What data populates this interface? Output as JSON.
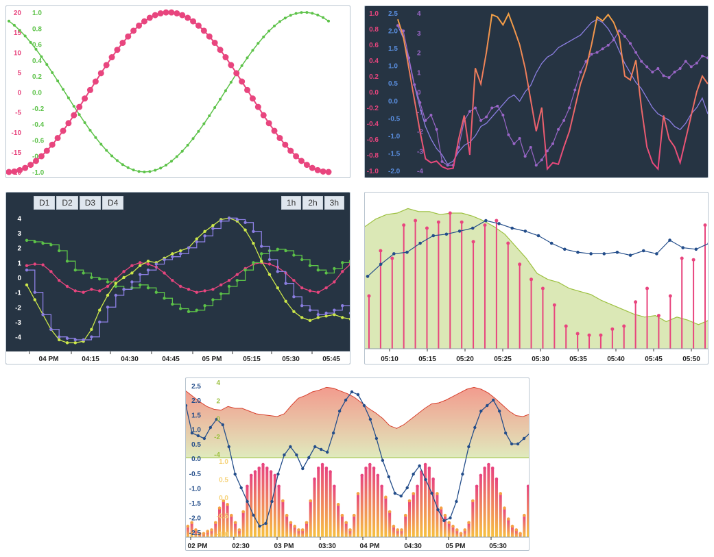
{
  "colors": {
    "pink": "#e8457e",
    "green": "#5cc248",
    "orange": "#f5a245",
    "blue": "#5a8fe0",
    "purple": "#9a66c8",
    "lavender": "#8c7fe3",
    "lime": "#cde84a",
    "olive": "#9cc03f",
    "navy": "#234d8a",
    "darkbg": "#263443"
  },
  "chart_data": [
    {
      "id": "chart1",
      "type": "line",
      "title": "",
      "y_axis_left": {
        "ticks": [
          "20",
          "15",
          "10",
          "5",
          "0",
          "-5",
          "-10",
          "-15",
          "-20"
        ],
        "ylim": [
          -20,
          20
        ]
      },
      "y_axis_right": {
        "ticks": [
          "1.0",
          "0.8",
          "0.6",
          "0.4",
          "0.2",
          "0.0",
          "-0.2",
          "-0.4",
          "-0.6",
          "-0.8",
          "-1.0"
        ],
        "ylim": [
          -1,
          1
        ]
      },
      "series": [
        {
          "axis": "left",
          "color": "pink",
          "shape": "sine",
          "period_x": [
            0,
            6.28
          ],
          "points": 60
        },
        {
          "axis": "right",
          "color": "green",
          "shape": "sine",
          "period_x": [
            0,
            6.28
          ],
          "points": 60
        }
      ]
    },
    {
      "id": "chart2",
      "type": "line",
      "y_axis_pink": {
        "ticks": [
          "1.0",
          "0.8",
          "0.6",
          "0.4",
          "0.2",
          "0.0",
          "-0.2",
          "-0.4",
          "-0.6",
          "-0.8",
          "-1.0"
        ],
        "ylim": [
          -1,
          1
        ]
      },
      "y_axis_blue": {
        "ticks": [
          "2.5",
          "2.0",
          "1.5",
          "1.0",
          "0.5",
          "0.0",
          "-0.5",
          "-1.0",
          "-1.5",
          "-2.0"
        ],
        "ylim": [
          -2.3,
          2.7
        ]
      },
      "y_axis_purple": {
        "ticks": [
          "4",
          "3",
          "2",
          "1",
          "0",
          "-1",
          "-2",
          "-3",
          "-4"
        ],
        "ylim": [
          -4.3,
          4.5
        ]
      },
      "series": [
        {
          "axis": "pink",
          "style": "gradient-line",
          "values": [
            0.92,
            0.7,
            0.3,
            -0.1,
            -0.5,
            -0.85,
            -0.9,
            -0.88,
            -0.95,
            -0.98,
            -0.97,
            -0.6,
            -0.3,
            -0.8,
            0.3,
            0.1,
            0.5,
            0.98,
            0.95,
            0.85,
            0.99,
            0.8,
            0.6,
            0.3,
            -0.1,
            -0.5,
            -0.2,
            -0.98,
            -0.9,
            -0.92,
            -0.7,
            -0.5,
            -0.2,
            0.1,
            0.3,
            0.6,
            0.95,
            0.9,
            0.98,
            0.88,
            0.7,
            0.2,
            0.15,
            0.4,
            -0.2,
            -0.7,
            -0.9,
            -0.98,
            -0.3,
            -0.6,
            -0.7,
            -0.9,
            -0.6,
            -0.3,
            0.0,
            0.2,
            0.1
          ]
        },
        {
          "axis": "blue",
          "color": "lavender",
          "values": [
            2.3,
            1.9,
            1.2,
            0.4,
            -0.3,
            -0.9,
            -1.3,
            -1.6,
            -1.8,
            -2.1,
            -2.0,
            -1.7,
            -1.5,
            -1.4,
            -1.2,
            -0.9,
            -0.8,
            -0.6,
            -0.4,
            -0.2,
            0.0,
            0.1,
            -0.1,
            0.2,
            0.4,
            0.8,
            1.1,
            1.3,
            1.4,
            1.6,
            1.7,
            1.8,
            1.9,
            2.0,
            2.2,
            2.4,
            2.5,
            2.4,
            2.2,
            1.9,
            1.5,
            1.1,
            0.8,
            0.5,
            0.3,
            0.0,
            -0.3,
            -0.5,
            -0.6,
            -0.7,
            -0.9,
            -1.0,
            -0.8,
            -0.5,
            -0.3,
            0.0,
            -0.5
          ]
        },
        {
          "axis": "purple",
          "color": "purple",
          "markers": true,
          "values": [
            3.8,
            3.5,
            2.0,
            0.5,
            -0.5,
            -1.5,
            -1.2,
            -2.0,
            -3.8,
            -4.0,
            -4.0,
            -3.0,
            -1.5,
            -1.0,
            -0.8,
            -1.5,
            -1.3,
            -0.8,
            -0.7,
            -1.2,
            -2.3,
            -2.8,
            -2.5,
            -3.5,
            -3.0,
            -4.0,
            -3.7,
            -3.2,
            -2.8,
            -2.0,
            -1.5,
            -0.8,
            0.2,
            1.2,
            1.8,
            2.2,
            2.3,
            2.5,
            2.7,
            3.0,
            3.5,
            3.2,
            2.8,
            2.3,
            1.8,
            1.5,
            1.2,
            1.4,
            1.0,
            0.9,
            1.2,
            1.4,
            1.8,
            1.5,
            1.7,
            2.1,
            2.0
          ]
        }
      ]
    },
    {
      "id": "chart3",
      "type": "line",
      "legend": [
        "D1",
        "D2",
        "D3",
        "D4"
      ],
      "range_buttons": [
        "1h",
        "2h",
        "3h"
      ],
      "x_ticks": [
        "04 PM",
        "04:15",
        "04:30",
        "04:45",
        "05 PM",
        "05:15",
        "05:30",
        "05:45"
      ],
      "y_ticks": [
        "4",
        "3",
        "2",
        "1",
        "0",
        "-1",
        "-2",
        "-3",
        "-4"
      ],
      "ylim": [
        -4.8,
        4.2
      ],
      "series": [
        {
          "name": "D1",
          "color": "pink",
          "style": "smooth",
          "values": [
            0.8,
            0.9,
            0.85,
            0.4,
            -0.2,
            -0.6,
            -0.9,
            -1.0,
            -0.8,
            -0.9,
            -0.6,
            -0.1,
            0.4,
            0.8,
            1.0,
            0.9,
            0.7,
            0.3,
            -0.2,
            -0.6,
            -0.8,
            -1.0,
            -0.9,
            -0.8,
            -0.5,
            -0.2,
            0.2,
            0.6,
            0.9,
            1.0,
            0.9,
            0.7,
            0.3,
            -0.2,
            -0.7,
            -0.9,
            -1.0,
            -0.7,
            -0.3,
            0.4,
            0.9
          ]
        },
        {
          "name": "D2",
          "color": "green",
          "style": "step",
          "values": [
            2.5,
            2.4,
            2.3,
            2.2,
            1.8,
            1.1,
            0.5,
            0.3,
            0.0,
            -0.1,
            -0.3,
            -0.6,
            -0.8,
            -0.7,
            -0.5,
            -0.7,
            -1.0,
            -1.4,
            -1.8,
            -2.1,
            -2.3,
            -2.2,
            -1.9,
            -1.5,
            -1.1,
            -0.6,
            -0.2,
            0.5,
            1.0,
            1.6,
            1.8,
            1.9,
            1.8,
            1.5,
            1.2,
            0.8,
            0.5,
            0.3,
            0.6,
            1.0,
            1.1
          ]
        },
        {
          "name": "D3",
          "color": "lime",
          "style": "smooth",
          "values": [
            -0.5,
            -1.5,
            -2.5,
            -3.5,
            -4.2,
            -4.4,
            -4.4,
            -4.3,
            -3.5,
            -2.2,
            -1.2,
            -0.4,
            0.0,
            0.3,
            0.8,
            1.1,
            1.0,
            1.3,
            1.6,
            1.8,
            2.0,
            2.6,
            3.1,
            3.5,
            3.9,
            4.0,
            3.8,
            3.2,
            2.3,
            1.1,
            0.2,
            -0.7,
            -1.6,
            -2.3,
            -2.7,
            -2.9,
            -2.7,
            -2.6,
            -2.5,
            -2.7,
            -2.8
          ]
        },
        {
          "name": "D4",
          "color": "lavender",
          "style": "step",
          "values": [
            0.5,
            -1.0,
            -2.5,
            -3.5,
            -4.0,
            -4.1,
            -4.2,
            -4.2,
            -4.0,
            -3.0,
            -2.0,
            -1.2,
            -0.8,
            -0.3,
            0.2,
            0.5,
            0.9,
            1.2,
            1.4,
            1.6,
            2.0,
            2.4,
            2.8,
            3.3,
            3.8,
            4.0,
            3.9,
            3.7,
            3.1,
            2.1,
            1.2,
            0.4,
            -0.4,
            -1.3,
            -1.9,
            -2.2,
            -2.5,
            -2.4,
            -2.2,
            -1.9,
            -2.4
          ]
        }
      ]
    },
    {
      "id": "chart4",
      "type": "mixed",
      "x_ticks": [
        "05:10",
        "05:15",
        "05:20",
        "05:25",
        "05:30",
        "05:35",
        "05:40",
        "05:45",
        "05:50"
      ],
      "ylim": [
        0,
        10
      ],
      "series": [
        {
          "style": "area",
          "color": "olive",
          "fill": "#dbe8b6",
          "values": [
            8.1,
            8.6,
            8.9,
            9.0,
            9.3,
            9.1,
            9.1,
            8.9,
            9.0,
            9.0,
            8.8,
            8.5,
            8.1,
            7.6,
            6.8,
            6.0,
            5.0,
            4.6,
            4.4,
            4.0,
            3.8,
            3.6,
            3.2,
            2.9,
            2.6,
            2.3,
            2.1,
            2.2,
            1.8,
            2.1,
            1.9,
            1.6,
            1.9
          ]
        },
        {
          "style": "stem",
          "color": "pink",
          "values": [
            3.5,
            6.5,
            6.0,
            8.2,
            8.5,
            8.0,
            8.4,
            9.0,
            8.4,
            7.1,
            8.2,
            8.5,
            7.0,
            5.6,
            4.6,
            4.0,
            2.9,
            1.5,
            1.0,
            0.9,
            0.9,
            1.3,
            1.5,
            3.1,
            4.0,
            2.2,
            3.5,
            6.0,
            5.9,
            8.2
          ]
        },
        {
          "style": "line-markers",
          "color": "navy",
          "values": [
            4.8,
            5.6,
            6.3,
            6.4,
            7.0,
            7.5,
            7.6,
            7.8,
            8.0,
            8.5,
            8.3,
            8.0,
            7.8,
            7.5,
            7.0,
            6.6,
            6.4,
            6.3,
            6.3,
            6.4,
            6.2,
            6.5,
            6.3,
            7.2,
            6.7,
            6.6,
            7.0
          ]
        }
      ]
    },
    {
      "id": "chart5",
      "type": "mixed",
      "x_ticks": [
        "02 PM",
        "02:30",
        "03 PM",
        "03:30",
        "04 PM",
        "04:30",
        "05 PM",
        "05:30"
      ],
      "top_axis_left": {
        "ticks": [
          "2.5",
          "2.0",
          "1.5",
          "1.0",
          "0.5",
          "0.0"
        ]
      },
      "top_axis_right": {
        "ticks": [
          "4",
          "2",
          "0",
          "-2",
          "-4"
        ]
      },
      "bottom_axis_left": {
        "ticks": [
          "-0.5",
          "-1.0",
          "-1.5",
          "-2.0",
          "-2.5"
        ]
      },
      "bottom_axis_right": {
        "ticks": [
          "1.0",
          "0.5",
          "0.0",
          "-0.5",
          "-1.0"
        ]
      },
      "series": [
        {
          "panel": "top",
          "style": "area",
          "color": "red-gradient",
          "values": [
            2.8,
            2.2,
            1.6,
            1.1,
            0.8,
            0.7,
            1.1,
            0.9,
            0.9,
            0.6,
            0.3,
            0.2,
            0.1,
            0.0,
            0.3,
            1.2,
            2.0,
            2.3,
            2.7,
            2.9,
            3.2,
            3.1,
            2.8,
            2.5,
            2.1,
            1.5,
            0.9,
            0.4,
            -0.2,
            -1.0,
            -1.3,
            -0.9,
            -0.3,
            0.3,
            0.9,
            1.4,
            1.5,
            1.8,
            2.2,
            2.6,
            3.0,
            3.2,
            3.0,
            2.6,
            2.0,
            1.3,
            0.6,
            0.1,
            0.0,
            0.3
          ]
        },
        {
          "panel": "top",
          "style": "line-markers",
          "color": "navy",
          "values": [
            2.0,
            1.0,
            0.9,
            0.8,
            1.2,
            1.5,
            1.3,
            0.5,
            -0.5,
            -1.0,
            -1.5,
            -2.0,
            -2.4,
            -2.3,
            -1.5,
            -0.5,
            0.2,
            0.5,
            0.2,
            -0.3,
            0.1,
            0.5,
            0.4,
            0.3,
            1.0,
            1.8,
            2.2,
            2.5,
            2.4,
            2.0,
            1.5,
            0.8,
            0.0,
            -0.6,
            -1.2,
            -1.3,
            -1.0,
            -0.5,
            -0.2,
            -0.7,
            -1.2,
            -1.8,
            -2.2,
            -2.1,
            -1.5,
            -0.5,
            0.5,
            1.2,
            1.8,
            2.0,
            2.2,
            1.8,
            1.0,
            0.6,
            0.6,
            0.8,
            1.0
          ]
        },
        {
          "panel": "bottom",
          "style": "bar-markers",
          "color": "orange-pink-gradient",
          "values": [
            0.15,
            0.2,
            0.1,
            0.05,
            0.05,
            0.08,
            0.1,
            0.2,
            0.4,
            0.5,
            0.45,
            0.3,
            0.2,
            0.1,
            0.35,
            0.7,
            0.85,
            0.9,
            0.95,
            1.0,
            0.95,
            0.9,
            0.85,
            0.7,
            0.5,
            0.3,
            0.2,
            0.15,
            0.1,
            0.1,
            0.2,
            0.5,
            0.8,
            0.95,
            1.0,
            0.95,
            0.9,
            0.7,
            0.45,
            0.3,
            0.2,
            0.1,
            0.3,
            0.6,
            0.85,
            0.95,
            1.0,
            0.95,
            0.85,
            0.7,
            0.55,
            0.35,
            0.15,
            0.1,
            0.1,
            0.3,
            0.5,
            0.6,
            0.7,
            0.9,
            1.0,
            0.95,
            0.8,
            0.6,
            0.4,
            0.3,
            0.2,
            0.15,
            0.1,
            0.05,
            0.1,
            0.2,
            0.5,
            0.7,
            0.85,
            0.95,
            1.0,
            0.95,
            0.8,
            0.6,
            0.4,
            0.25,
            0.15,
            0.1,
            0.05,
            0.3,
            0.7
          ]
        }
      ]
    }
  ]
}
